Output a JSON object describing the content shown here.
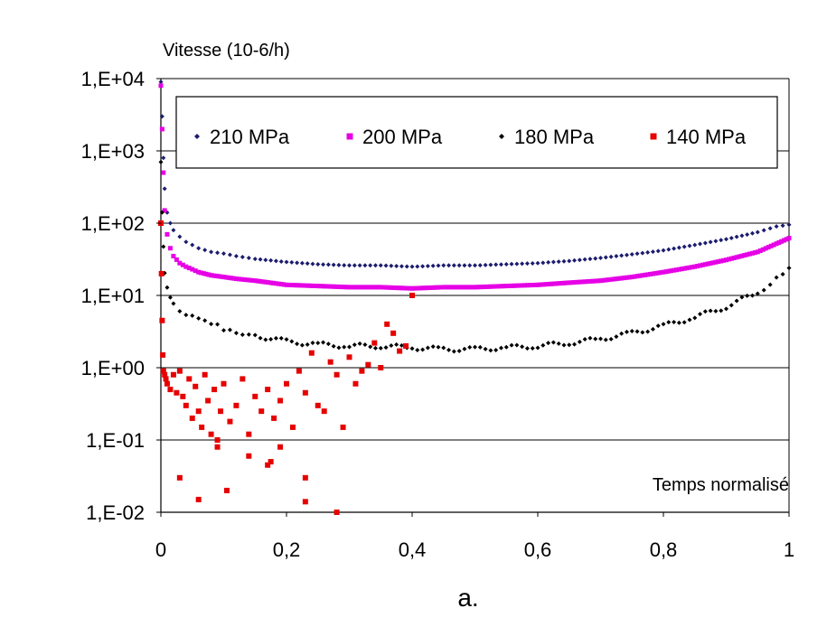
{
  "chart_data": {
    "type": "scatter",
    "title": "",
    "ylabel": "Vitesse (10-6/h)",
    "xlabel": "Temps normalisé",
    "caption": "a.",
    "y_scale": "log",
    "ylim": [
      0.01,
      10000
    ],
    "xlim": [
      0,
      1
    ],
    "y_ticks": [
      "1,E-02",
      "1,E-01",
      "1,E+00",
      "1,E+01",
      "1,E+02",
      "1,E+03",
      "1,E+04"
    ],
    "x_ticks": [
      "0",
      "0,2",
      "0,4",
      "0,6",
      "0,8",
      "1"
    ],
    "grid": "horizontal",
    "legend_position": "top-inside",
    "series": [
      {
        "name": "210 MPa",
        "color": "#1c1c6e",
        "marker": "diamond",
        "x": [
          0,
          0.002,
          0.004,
          0.006,
          0.01,
          0.015,
          0.02,
          0.03,
          0.04,
          0.05,
          0.06,
          0.08,
          0.1,
          0.12,
          0.15,
          0.2,
          0.25,
          0.3,
          0.35,
          0.4,
          0.45,
          0.5,
          0.55,
          0.6,
          0.65,
          0.7,
          0.75,
          0.8,
          0.85,
          0.9,
          0.95,
          0.98,
          1.0
        ],
        "y": [
          9000,
          3000,
          800,
          300,
          140,
          100,
          80,
          65,
          55,
          50,
          45,
          40,
          38,
          35,
          32,
          29,
          27,
          26,
          26,
          25,
          26,
          26,
          27,
          28,
          30,
          33,
          37,
          42,
          50,
          60,
          75,
          90,
          95
        ]
      },
      {
        "name": "200 MPa",
        "color": "#e600e6",
        "marker": "square",
        "x": [
          0,
          0.002,
          0.004,
          0.006,
          0.01,
          0.015,
          0.02,
          0.03,
          0.04,
          0.05,
          0.06,
          0.08,
          0.1,
          0.12,
          0.15,
          0.2,
          0.25,
          0.3,
          0.35,
          0.4,
          0.45,
          0.5,
          0.55,
          0.6,
          0.65,
          0.7,
          0.75,
          0.8,
          0.85,
          0.9,
          0.95,
          0.98,
          1.0
        ],
        "y": [
          8000,
          2000,
          500,
          150,
          70,
          45,
          35,
          28,
          25,
          23,
          21,
          19,
          18,
          17,
          16,
          14,
          13.5,
          13,
          13,
          12.5,
          13,
          13,
          13.5,
          14,
          15,
          16,
          18,
          21,
          25,
          31,
          40,
          52,
          62
        ]
      },
      {
        "name": "180 MPa",
        "color": "#000000",
        "marker": "diamond",
        "x": [
          0,
          0.002,
          0.004,
          0.006,
          0.01,
          0.015,
          0.02,
          0.03,
          0.04,
          0.05,
          0.06,
          0.08,
          0.1,
          0.12,
          0.15,
          0.2,
          0.25,
          0.3,
          0.35,
          0.4,
          0.45,
          0.5,
          0.55,
          0.6,
          0.65,
          0.7,
          0.75,
          0.8,
          0.85,
          0.9,
          0.95,
          0.98,
          1.0
        ],
        "y": [
          700,
          150,
          50,
          20,
          12,
          9,
          8,
          6.5,
          5.5,
          5,
          4.5,
          4,
          3.5,
          3.2,
          2.8,
          2.3,
          2.1,
          2.0,
          2.0,
          1.9,
          1.8,
          1.8,
          1.9,
          2.0,
          2.2,
          2.5,
          3.0,
          3.8,
          5,
          7,
          11,
          17,
          24
        ]
      },
      {
        "name": "140 MPa",
        "color": "#e60000",
        "marker": "square",
        "x": [
          0.0,
          0.001,
          0.002,
          0.003,
          0.004,
          0.006,
          0.008,
          0.01,
          0.015,
          0.02,
          0.025,
          0.03,
          0.035,
          0.04,
          0.045,
          0.05,
          0.055,
          0.06,
          0.065,
          0.07,
          0.075,
          0.08,
          0.085,
          0.09,
          0.095,
          0.1,
          0.11,
          0.12,
          0.13,
          0.14,
          0.15,
          0.16,
          0.17,
          0.18,
          0.19,
          0.2,
          0.21,
          0.22,
          0.23,
          0.24,
          0.25,
          0.26,
          0.27,
          0.28,
          0.29,
          0.3,
          0.31,
          0.32,
          0.33,
          0.34,
          0.35,
          0.36,
          0.37,
          0.38,
          0.39,
          0.4,
          0.03,
          0.06,
          0.105,
          0.17,
          0.23,
          0.23,
          0.28,
          0.175,
          0.09,
          0.14,
          0.19
        ],
        "y": [
          100,
          20,
          4.5,
          1.5,
          0.9,
          0.8,
          0.7,
          0.6,
          0.5,
          0.8,
          0.45,
          0.9,
          0.4,
          0.3,
          0.7,
          0.2,
          0.55,
          0.25,
          0.15,
          0.8,
          0.35,
          0.12,
          0.5,
          0.08,
          0.25,
          0.6,
          0.18,
          0.3,
          0.7,
          0.12,
          0.4,
          0.25,
          0.5,
          0.2,
          0.35,
          0.6,
          0.15,
          0.9,
          0.45,
          1.6,
          0.3,
          0.25,
          1.2,
          0.8,
          0.15,
          1.4,
          0.6,
          0.9,
          1.1,
          2.2,
          1.0,
          4.0,
          3.0,
          1.7,
          2.0,
          10,
          0.03,
          0.015,
          0.02,
          0.045,
          0.03,
          0.014,
          0.01,
          0.05,
          0.1,
          0.06,
          0.08
        ]
      }
    ]
  }
}
